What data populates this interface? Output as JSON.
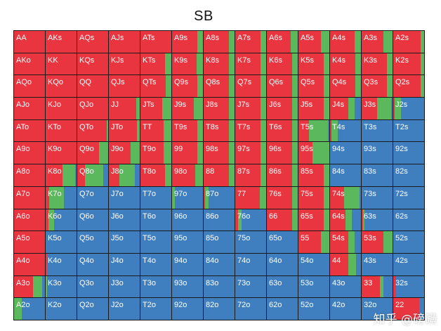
{
  "title": "SB",
  "watermark": "知乎 @磅礴",
  "colors": {
    "raise": "#e8353f",
    "call": "#5cb85c",
    "fold": "#3f7fbf"
  },
  "grid": [
    [
      "AA",
      "AKs",
      "AQs",
      "AJs",
      "ATs",
      "A9s",
      "A8s",
      "A7s",
      "A6s",
      "A5s",
      "A4s",
      "A3s",
      "A2s"
    ],
    [
      "AKo",
      "KK",
      "KQs",
      "KJs",
      "KTs",
      "K9s",
      "K8s",
      "K7s",
      "K6s",
      "K5s",
      "K4s",
      "K3s",
      "K2s"
    ],
    [
      "AQo",
      "KQo",
      "QQ",
      "QJs",
      "QTs",
      "Q9s",
      "Q8s",
      "Q7s",
      "Q6s",
      "Q5s",
      "Q4s",
      "Q3s",
      "Q2s"
    ],
    [
      "AJo",
      "KJo",
      "QJo",
      "JJ",
      "JTs",
      "J9s",
      "J8s",
      "J7s",
      "J6s",
      "J5s",
      "J4s",
      "J3s",
      "J2s"
    ],
    [
      "ATo",
      "KTo",
      "QTo",
      "JTo",
      "TT",
      "T9s",
      "T8s",
      "T7s",
      "T6s",
      "T5s",
      "T4s",
      "T3s",
      "T2s"
    ],
    [
      "A9o",
      "K9o",
      "Q9o",
      "J9o",
      "T9o",
      "99",
      "98s",
      "97s",
      "96s",
      "95s",
      "94s",
      "93s",
      "92s"
    ],
    [
      "A8o",
      "K8o",
      "Q8o",
      "J8o",
      "T8o",
      "98o",
      "88",
      "87s",
      "86s",
      "85s",
      "84s",
      "83s",
      "82s"
    ],
    [
      "A7o",
      "K7o",
      "Q7o",
      "J7o",
      "T7o",
      "97o",
      "87o",
      "77",
      "76s",
      "75s",
      "74s",
      "73s",
      "72s"
    ],
    [
      "A6o",
      "K6o",
      "Q6o",
      "J6o",
      "T6o",
      "96o",
      "86o",
      "76o",
      "66",
      "65s",
      "64s",
      "63s",
      "62s"
    ],
    [
      "A5o",
      "K5o",
      "Q5o",
      "J5o",
      "T5o",
      "95o",
      "85o",
      "75o",
      "65o",
      "55",
      "54s",
      "53s",
      "52s"
    ],
    [
      "A4o",
      "K4o",
      "Q4o",
      "J4o",
      "T4o",
      "94o",
      "84o",
      "74o",
      "64o",
      "54o",
      "44",
      "43s",
      "42s"
    ],
    [
      "A3o",
      "K3o",
      "Q3o",
      "J3o",
      "T3o",
      "93o",
      "83o",
      "73o",
      "63o",
      "53o",
      "43o",
      "33",
      "32s"
    ],
    [
      "A2o",
      "K2o",
      "Q2o",
      "J2o",
      "T2o",
      "92o",
      "82o",
      "72o",
      "62o",
      "52o",
      "42o",
      "32o",
      "22"
    ]
  ],
  "frequencies": [
    [
      [
        1,
        0
      ],
      [
        1,
        0
      ],
      [
        1,
        0
      ],
      [
        1,
        0
      ],
      [
        1,
        0
      ],
      [
        0.82,
        0.18
      ],
      [
        0.82,
        0.18
      ],
      [
        0.82,
        0.18
      ],
      [
        0.78,
        0.22
      ],
      [
        0.72,
        0.28
      ],
      [
        0.8,
        0.2
      ],
      [
        0.7,
        0.3
      ],
      [
        0.88,
        0.12
      ]
    ],
    [
      [
        1,
        0
      ],
      [
        1,
        0
      ],
      [
        1,
        0
      ],
      [
        1,
        0
      ],
      [
        0.8,
        0.2
      ],
      [
        0.8,
        0.2
      ],
      [
        0.82,
        0.18
      ],
      [
        0.82,
        0.18
      ],
      [
        0.82,
        0.18
      ],
      [
        0.82,
        0.18
      ],
      [
        0.82,
        0.18
      ],
      [
        0.82,
        0.18
      ],
      [
        0.88,
        0.12
      ]
    ],
    [
      [
        1,
        0
      ],
      [
        1,
        0
      ],
      [
        1,
        0
      ],
      [
        1,
        0
      ],
      [
        0.82,
        0.18
      ],
      [
        0.82,
        0.18
      ],
      [
        0.82,
        0.18
      ],
      [
        0.82,
        0.18
      ],
      [
        0.82,
        0.18
      ],
      [
        0.82,
        0.18
      ],
      [
        0.82,
        0.18
      ],
      [
        0.82,
        0.18
      ],
      [
        0.88,
        0.12
      ]
    ],
    [
      [
        1,
        0
      ],
      [
        1,
        0
      ],
      [
        1,
        0
      ],
      [
        0.88,
        0.12
      ],
      [
        0.7,
        0.3
      ],
      [
        0.7,
        0.3
      ],
      [
        0.82,
        0.18
      ],
      [
        0.82,
        0.18
      ],
      [
        0.82,
        0.18
      ],
      [
        0.82,
        0.18
      ],
      [
        0.6,
        0.2
      ],
      [
        0.5,
        0.45
      ],
      [
        0.05,
        0.2
      ]
    ],
    [
      [
        1,
        0
      ],
      [
        1,
        0
      ],
      [
        0.95,
        0.05
      ],
      [
        0.9,
        0.1
      ],
      [
        0.75,
        0.25
      ],
      [
        0.82,
        0.18
      ],
      [
        0.82,
        0.18
      ],
      [
        0.82,
        0.18
      ],
      [
        0.82,
        0.18
      ],
      [
        0.35,
        0.6
      ],
      [
        0.05,
        0.2
      ],
      [
        0,
        0
      ],
      [
        0,
        0
      ]
    ],
    [
      [
        1,
        0
      ],
      [
        1,
        0
      ],
      [
        0.7,
        0.3
      ],
      [
        0.7,
        0.3
      ],
      [
        0.75,
        0.25
      ],
      [
        0.82,
        0.18
      ],
      [
        0.82,
        0.18
      ],
      [
        0.82,
        0.18
      ],
      [
        0.82,
        0.18
      ],
      [
        0.45,
        0.55
      ],
      [
        0,
        0
      ],
      [
        0,
        0
      ],
      [
        0,
        0
      ]
    ],
    [
      [
        1,
        0
      ],
      [
        0.55,
        0.4
      ],
      [
        0.25,
        0.6
      ],
      [
        0.35,
        0.5
      ],
      [
        0.8,
        0.2
      ],
      [
        0.75,
        0.25
      ],
      [
        0.82,
        0.18
      ],
      [
        0.82,
        0.18
      ],
      [
        0.82,
        0.18
      ],
      [
        0.82,
        0.18
      ],
      [
        0,
        0
      ],
      [
        0,
        0
      ],
      [
        0,
        0
      ]
    ],
    [
      [
        1,
        0
      ],
      [
        0.12,
        0.48
      ],
      [
        0,
        0
      ],
      [
        0,
        0
      ],
      [
        0,
        0
      ],
      [
        0,
        0.08
      ],
      [
        0.05,
        0.1
      ],
      [
        0.8,
        0.2
      ],
      [
        0.82,
        0.18
      ],
      [
        0.82,
        0.18
      ],
      [
        0.45,
        0.5
      ],
      [
        0,
        0
      ],
      [
        0,
        0
      ]
    ],
    [
      [
        1,
        0
      ],
      [
        0.08,
        0.2
      ],
      [
        0,
        0
      ],
      [
        0,
        0
      ],
      [
        0,
        0
      ],
      [
        0,
        0
      ],
      [
        0,
        0
      ],
      [
        0.08,
        0.12
      ],
      [
        0.82,
        0.18
      ],
      [
        0.82,
        0.18
      ],
      [
        0.5,
        0.2
      ],
      [
        0.05,
        0.05
      ],
      [
        0,
        0
      ]
    ],
    [
      [
        1,
        0
      ],
      [
        0,
        0
      ],
      [
        0,
        0
      ],
      [
        0,
        0
      ],
      [
        0,
        0
      ],
      [
        0,
        0
      ],
      [
        0,
        0
      ],
      [
        0,
        0
      ],
      [
        0,
        0
      ],
      [
        0.72,
        0.28
      ],
      [
        0.6,
        0.2
      ],
      [
        0.7,
        0.3
      ],
      [
        0,
        0
      ]
    ],
    [
      [
        1,
        0
      ],
      [
        0.05,
        0
      ],
      [
        0,
        0
      ],
      [
        0,
        0
      ],
      [
        0,
        0
      ],
      [
        0,
        0
      ],
      [
        0,
        0
      ],
      [
        0,
        0
      ],
      [
        0,
        0
      ],
      [
        0,
        0
      ],
      [
        0.6,
        0.25
      ],
      [
        0,
        0
      ],
      [
        0,
        0
      ]
    ],
    [
      [
        0.62,
        0.3
      ],
      [
        0,
        0.05
      ],
      [
        0,
        0
      ],
      [
        0,
        0
      ],
      [
        0,
        0
      ],
      [
        0,
        0
      ],
      [
        0,
        0
      ],
      [
        0,
        0
      ],
      [
        0,
        0
      ],
      [
        0,
        0
      ],
      [
        0,
        0
      ],
      [
        0.6,
        0.1
      ],
      [
        0.1,
        0
      ]
    ],
    [
      [
        0,
        0.25
      ],
      [
        0,
        0
      ],
      [
        0,
        0
      ],
      [
        0,
        0
      ],
      [
        0,
        0
      ],
      [
        0,
        0
      ],
      [
        0,
        0
      ],
      [
        0,
        0
      ],
      [
        0,
        0
      ],
      [
        0,
        0
      ],
      [
        0,
        0
      ],
      [
        0,
        0
      ],
      [
        0.85,
        0
      ]
    ]
  ]
}
